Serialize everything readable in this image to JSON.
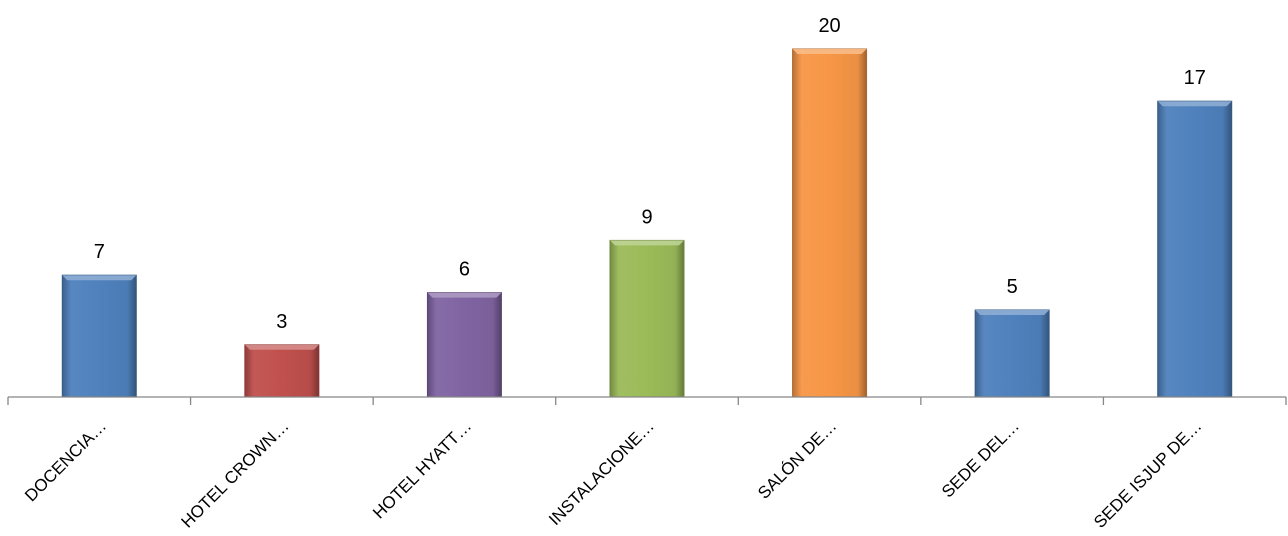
{
  "chart_data": {
    "type": "bar",
    "title": "",
    "xlabel": "",
    "ylabel": "",
    "categories": [
      "DOCENCIA…",
      "HOTEL CROWN…",
      "HOTEL HYATT…",
      "INSTALACIONE…",
      "SALÓN DE…",
      "SEDE DEL…",
      "SEDE ISJUP DE…"
    ],
    "values": [
      7,
      3,
      6,
      9,
      20,
      5,
      17
    ],
    "colors": [
      "#4f81bd",
      "#c0504d",
      "#8064a2",
      "#9bbb59",
      "#f79646",
      "#4f81bd",
      "#4f81bd"
    ],
    "ylim": [
      0,
      20
    ],
    "grid": false,
    "legend": "none",
    "data_labels": true,
    "axis_color": "#868686"
  }
}
